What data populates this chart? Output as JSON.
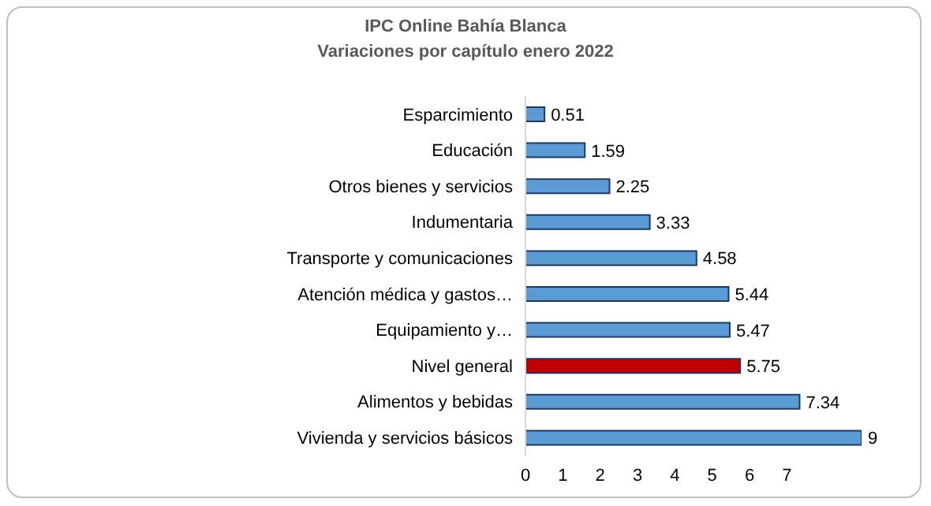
{
  "chart_data": {
    "type": "bar",
    "orientation": "horizontal",
    "title": "IPC Online Bahía Blanca",
    "subtitle": "Variaciones por capítulo enero 2022",
    "categories": [
      "Esparcimiento",
      "Educación",
      "Otros bienes y servicios",
      "Indumentaria",
      "Transporte y comunicaciones",
      "Atención médica y gastos…",
      "Equipamiento y…",
      "Nivel general",
      "Alimentos y bebidas",
      "Vivienda y servicios básicos"
    ],
    "values": [
      0.51,
      1.59,
      2.25,
      3.33,
      4.58,
      5.44,
      5.47,
      5.75,
      7.34,
      9
    ],
    "colors": [
      "#5b9bd5",
      "#5b9bd5",
      "#5b9bd5",
      "#5b9bd5",
      "#5b9bd5",
      "#5b9bd5",
      "#5b9bd5",
      "#c00000",
      "#5b9bd5",
      "#5b9bd5"
    ],
    "xlim": [
      0,
      9
    ],
    "xticks": [
      0,
      1,
      2,
      3,
      4,
      5,
      6,
      7
    ],
    "data_labels": true,
    "grid": false,
    "legend": false
  }
}
